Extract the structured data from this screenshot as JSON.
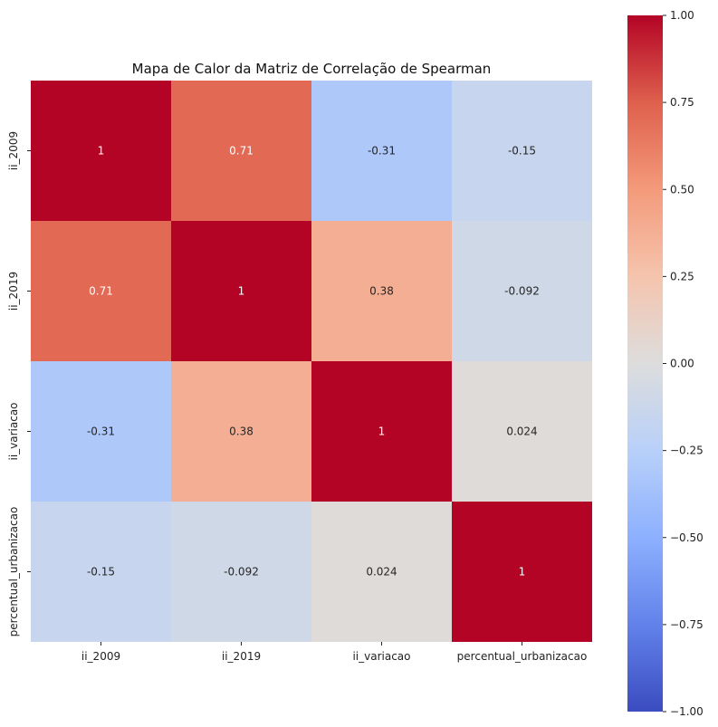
{
  "chart_data": {
    "type": "heatmap",
    "title": "Mapa de Calor da Matriz de Correlação de Spearman",
    "variables": [
      "ii_2009",
      "ii_2019",
      "ii_variacao",
      "percentual_urbanizacao"
    ],
    "values": [
      [
        1,
        0.71,
        -0.31,
        -0.15
      ],
      [
        0.71,
        1,
        0.38,
        -0.092
      ],
      [
        -0.31,
        0.38,
        1,
        0.024
      ],
      [
        -0.15,
        -0.092,
        0.024,
        1
      ]
    ],
    "value_labels": [
      [
        "1",
        "0.71",
        "-0.31",
        "-0.15"
      ],
      [
        "0.71",
        "1",
        "0.38",
        "-0.092"
      ],
      [
        "-0.31",
        "0.38",
        "1",
        "0.024"
      ],
      [
        "-0.15",
        "-0.092",
        "0.024",
        "1"
      ]
    ],
    "colormap": "coolwarm",
    "vmin": -1,
    "vmax": 1,
    "colorbar_ticks": [
      "1.00",
      "0.75",
      "0.50",
      "0.25",
      "0.00",
      "−0.25",
      "−0.50",
      "−0.75",
      "−1.00"
    ],
    "colorbar_tick_values": [
      1,
      0.75,
      0.5,
      0.25,
      0,
      -0.25,
      -0.5,
      -0.75,
      -1
    ]
  }
}
